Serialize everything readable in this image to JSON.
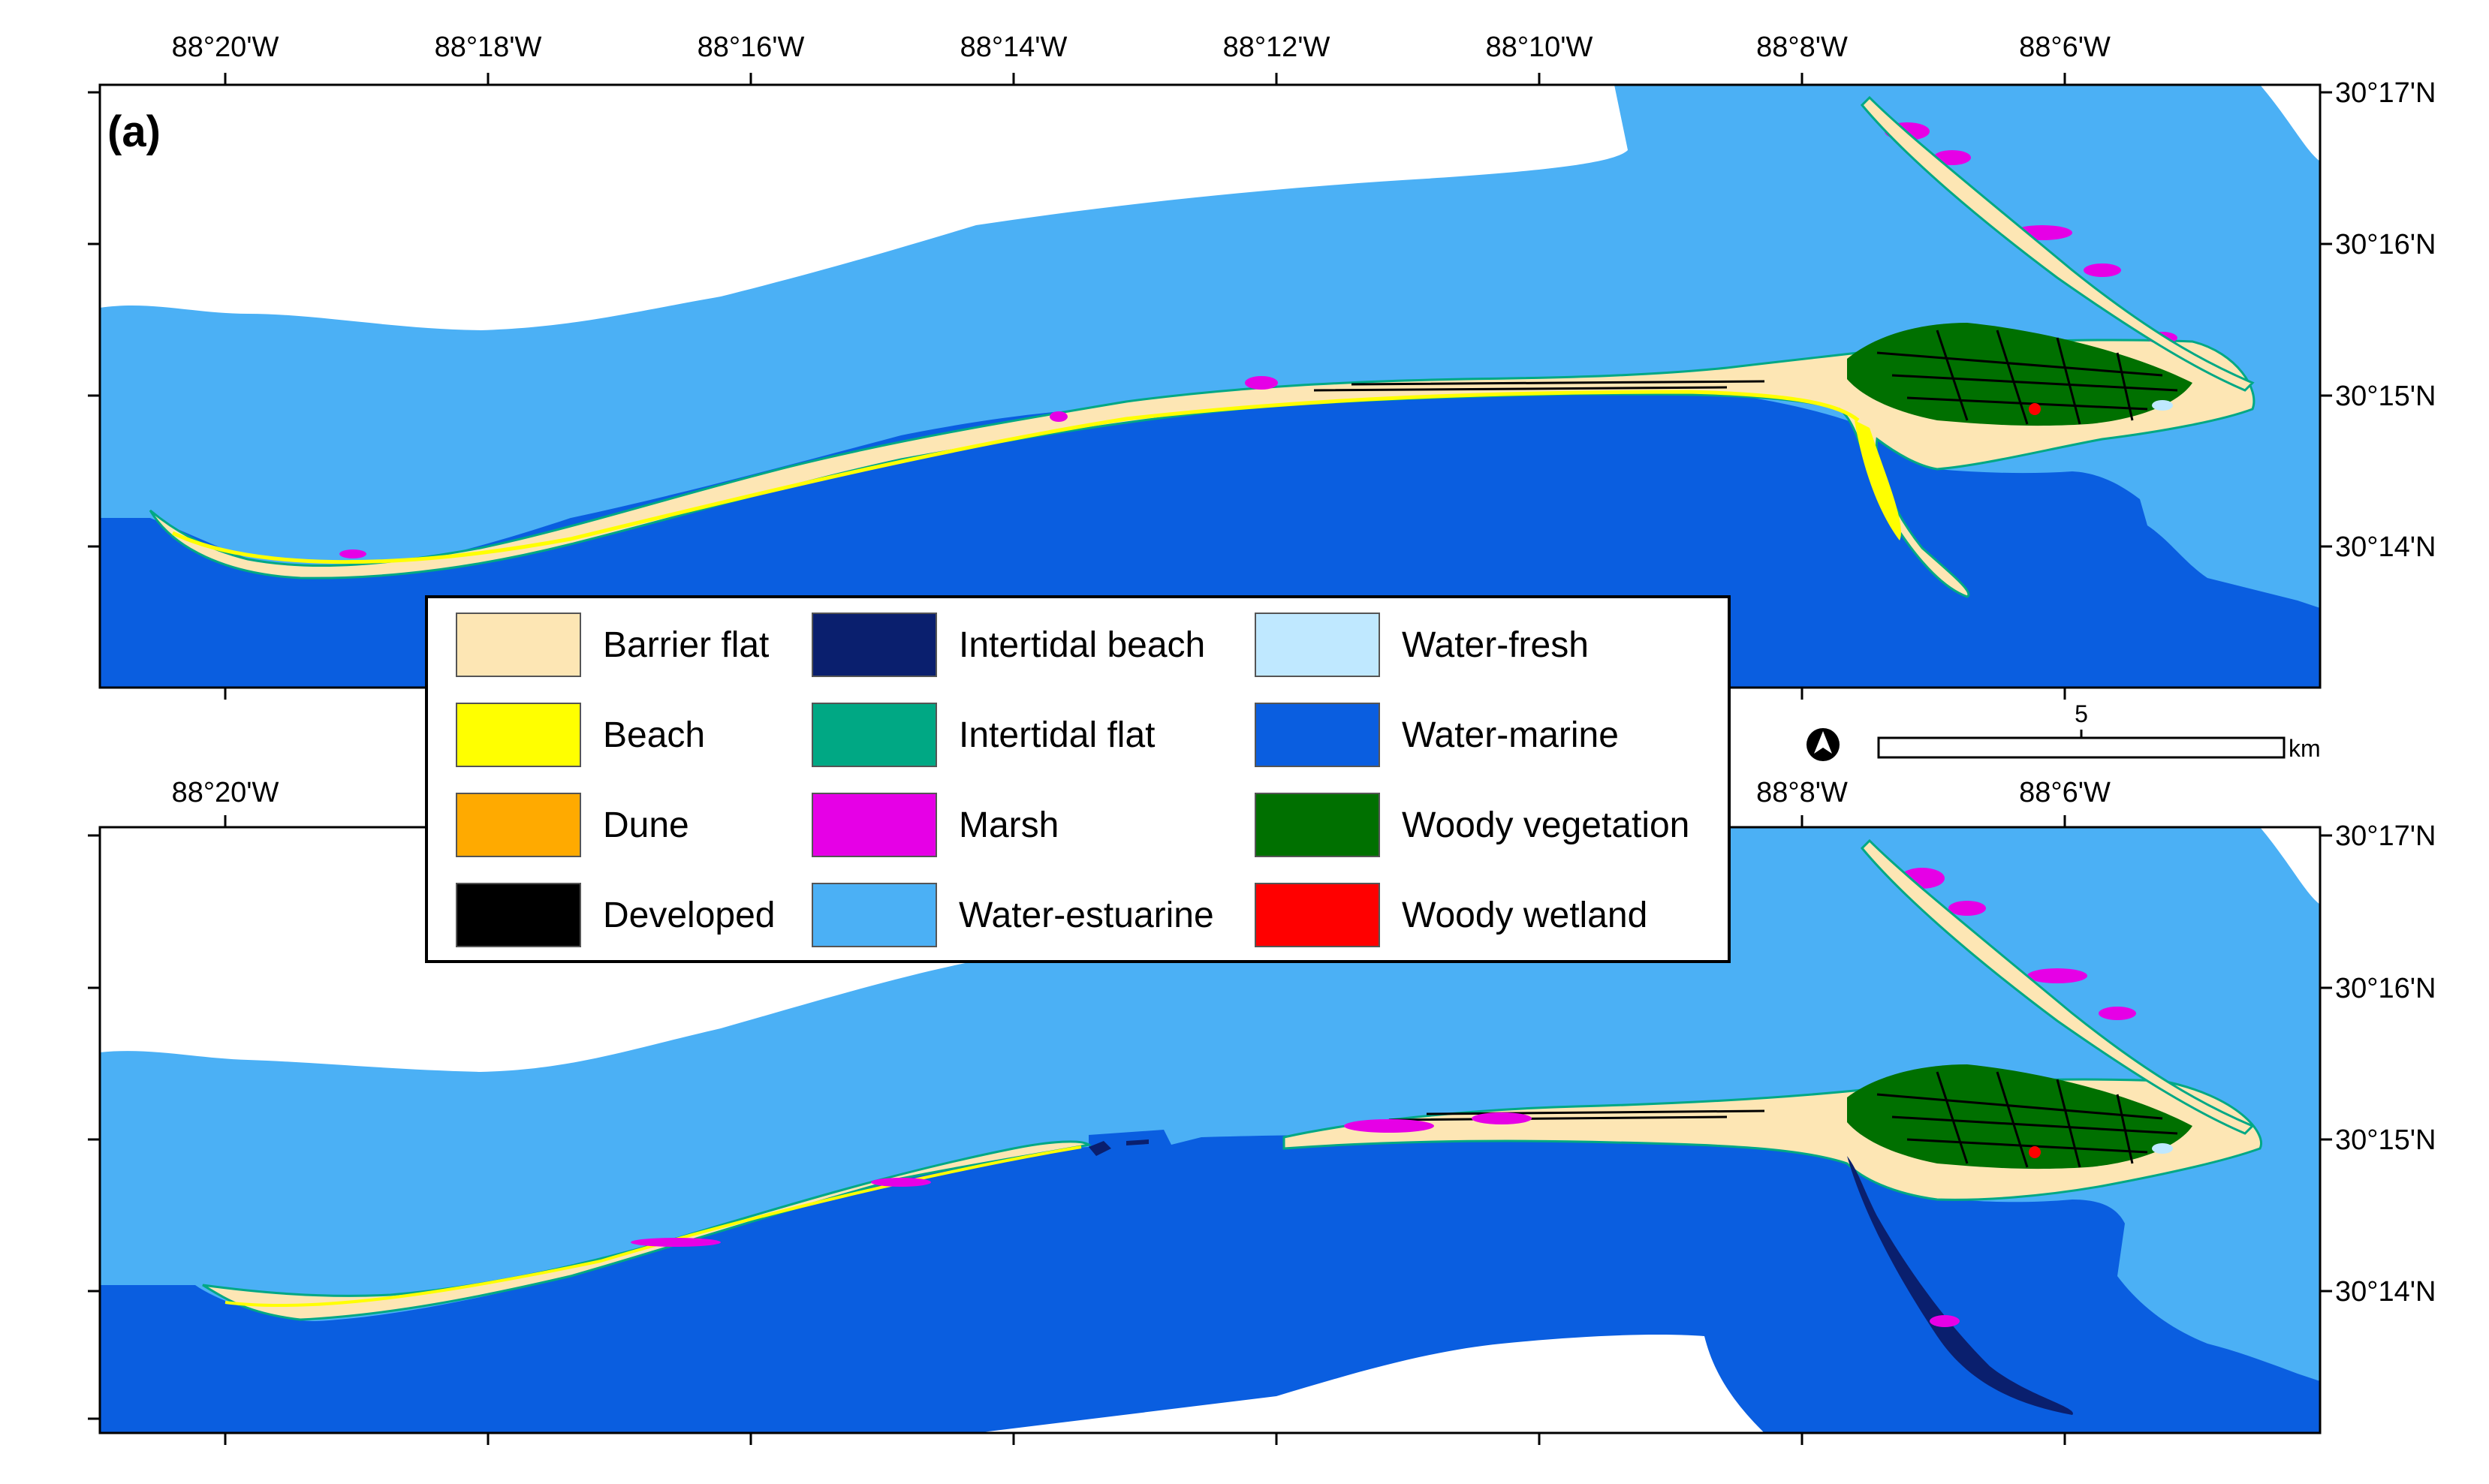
{
  "panels": [
    {
      "label": "(a)",
      "top_lon_labels": [
        "88°20'W",
        "88°18'W",
        "88°16'W",
        "88°14'W",
        "88°12'W",
        "88°10'W",
        "88°8'W",
        "88°6'W"
      ],
      "right_lat_labels": [
        "30°17'N",
        "30°16'N",
        "30°15'N",
        "30°14'N"
      ]
    },
    {
      "label": "",
      "top_lon_labels": [
        "88°20'W",
        "88°8'W",
        "88°6'W"
      ],
      "right_lat_labels": [
        "30°17'N",
        "30°16'N",
        "30°15'N",
        "30°14'N"
      ]
    }
  ],
  "legend": {
    "items": [
      {
        "label": "Barrier flat",
        "color": "#fde6b4"
      },
      {
        "label": "Beach",
        "color": "#ffff00"
      },
      {
        "label": "Dune",
        "color": "#ffaa00"
      },
      {
        "label": "Developed",
        "color": "#000000"
      },
      {
        "label": "Intertidal beach",
        "color": "#0a1f6e"
      },
      {
        "label": "Intertidal flat",
        "color": "#00a884"
      },
      {
        "label": "Marsh",
        "color": "#e600e6"
      },
      {
        "label": "Water-estuarine",
        "color": "#4bb0f5"
      },
      {
        "label": "Water-fresh",
        "color": "#bfe8ff"
      },
      {
        "label": "Water-marine",
        "color": "#0a5ee0"
      },
      {
        "label": "Woody vegetation",
        "color": "#007000"
      },
      {
        "label": "Woody wetland",
        "color": "#ff0000"
      }
    ]
  },
  "scale_bar": {
    "value": "5",
    "unit": "km"
  },
  "north_arrow": "north-arrow-icon",
  "colors": {
    "estuarine": "#4bb0f5",
    "marine": "#0a5ee0",
    "barrier": "#fde6b4",
    "beach": "#ffff00",
    "woody": "#007000",
    "marsh": "#e600e6",
    "intertidal_flat": "#00a884",
    "intertidal_beach": "#0a1f6e"
  }
}
